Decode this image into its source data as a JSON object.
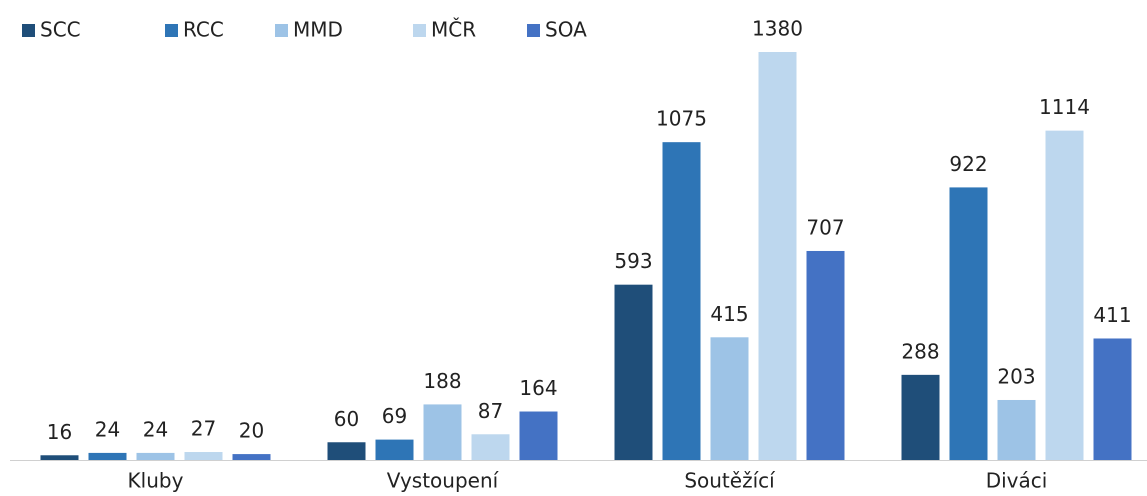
{
  "chart_data": {
    "type": "bar",
    "categories": [
      "Kluby",
      "Vystoupení",
      "Soutěžící",
      "Diváci"
    ],
    "series": [
      {
        "name": "SCC",
        "color": "#1f4e79",
        "values": [
          16,
          60,
          593,
          288
        ]
      },
      {
        "name": "RCC",
        "color": "#2e75b6",
        "values": [
          24,
          69,
          1075,
          922
        ]
      },
      {
        "name": "MMD",
        "color": "#9dc3e6",
        "values": [
          24,
          188,
          415,
          203
        ]
      },
      {
        "name": "MČR",
        "color": "#bdd7ee",
        "values": [
          27,
          87,
          1380,
          1114
        ]
      },
      {
        "name": "SOA",
        "color": "#4472c4",
        "values": [
          20,
          164,
          707,
          411
        ]
      }
    ],
    "legend": "top-left"
  }
}
